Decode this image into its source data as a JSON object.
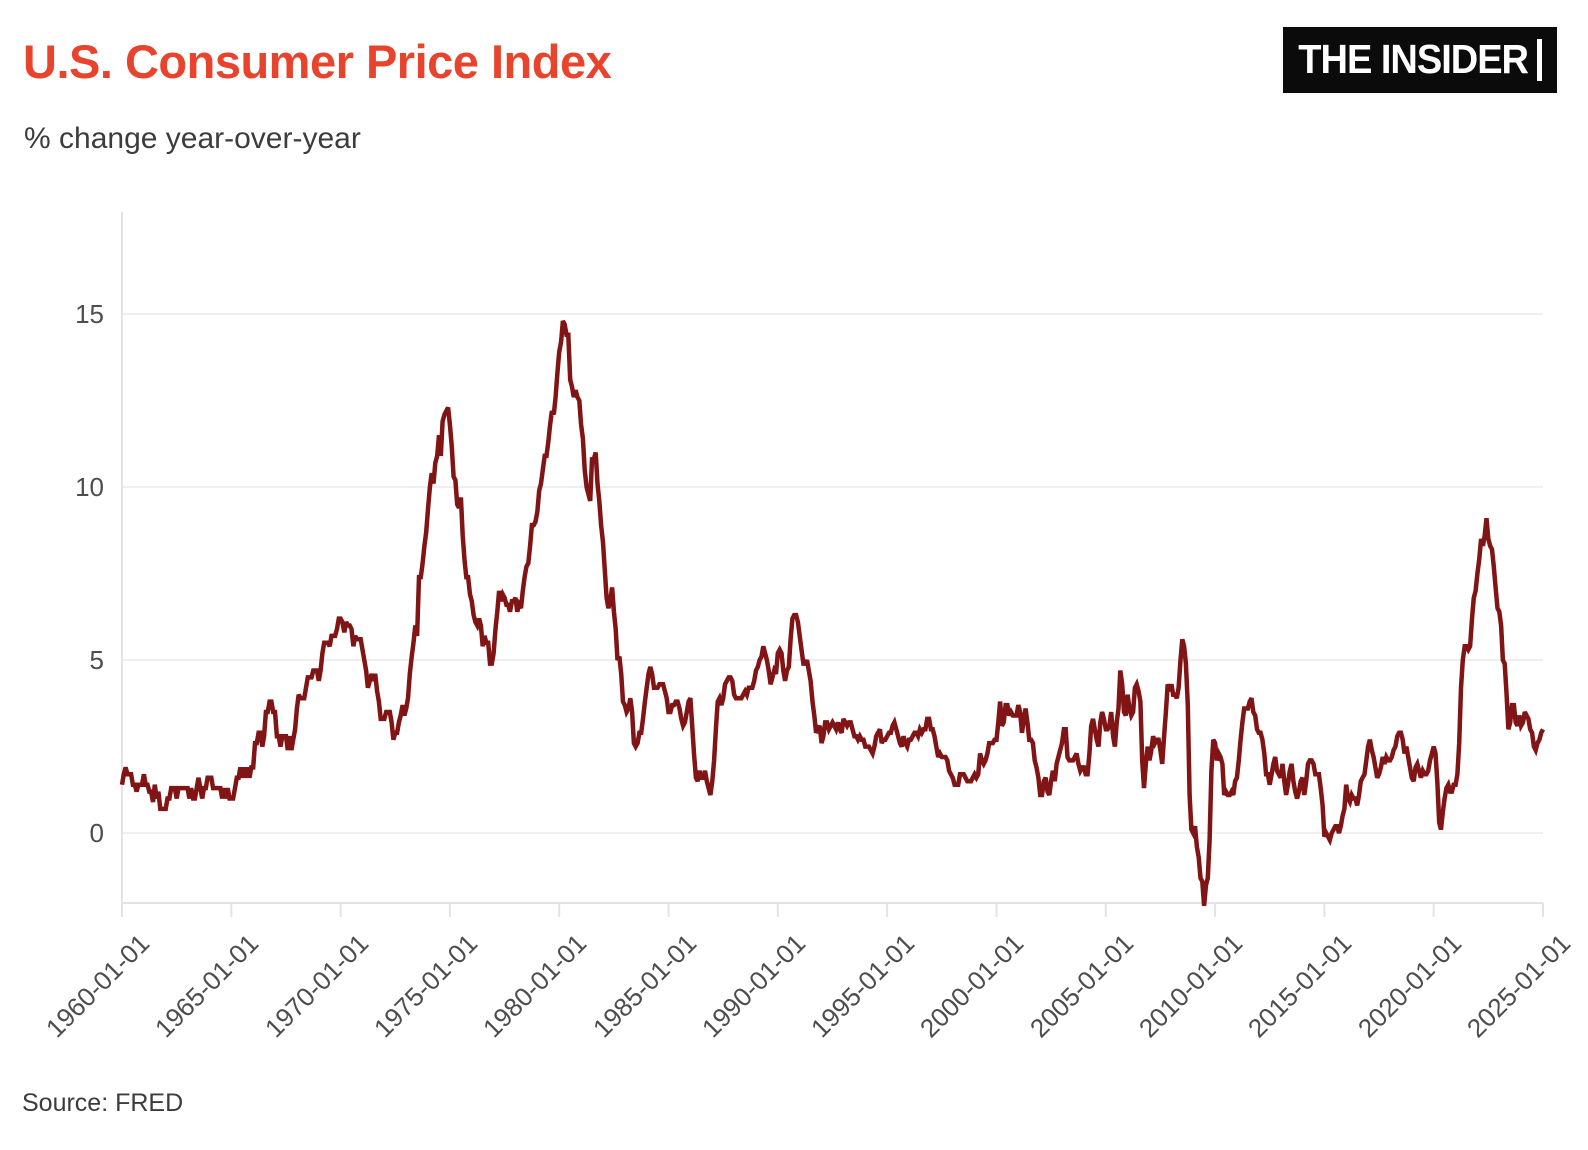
{
  "header": {
    "title": "U.S. Consumer Price Index",
    "subtitle": "% change year-over-year",
    "logo_text": "THE INSIDER"
  },
  "footer": {
    "source": "Source: FRED"
  },
  "chart": {
    "colors": {
      "title": "#e8432d",
      "line": "#811414",
      "grid": "#ececec",
      "axis": "#e3e3e3",
      "tick_label": "#4d4d4d"
    }
  },
  "chart_data": {
    "type": "line",
    "title": "U.S. Consumer Price Index",
    "subtitle": "% change year-over-year",
    "series_name": "CPI, % change year-over-year",
    "source": "FRED",
    "frequency": "monthly",
    "x_start": "1960-01-01",
    "x_end": "2025-01-01",
    "x_tick_labels": [
      "1960-01-01",
      "1965-01-01",
      "1970-01-01",
      "1975-01-01",
      "1980-01-01",
      "1985-01-01",
      "1990-01-01",
      "1995-01-01",
      "2000-01-01",
      "2005-01-01",
      "2010-01-01",
      "2015-01-01",
      "2020-01-01",
      "2025-01-01"
    ],
    "y_ticks": [
      0,
      5,
      10,
      15
    ],
    "ylim": [
      -2.02,
      17.95
    ],
    "grid": "horizontal",
    "legend": "none",
    "values": [
      1.4,
      1.7,
      1.9,
      1.7,
      1.7,
      1.7,
      1.4,
      1.4,
      1.2,
      1.4,
      1.4,
      1.4,
      1.7,
      1.4,
      1.4,
      1.2,
      1.2,
      0.9,
      1.4,
      1.0,
      1.2,
      0.7,
      0.7,
      0.7,
      0.7,
      1.0,
      1.0,
      1.3,
      1.3,
      1.3,
      1.0,
      1.3,
      1.3,
      1.3,
      1.3,
      1.3,
      1.3,
      1.0,
      1.3,
      1.0,
      1.0,
      1.3,
      1.6,
      1.3,
      1.0,
      1.3,
      1.3,
      1.6,
      1.6,
      1.6,
      1.3,
      1.3,
      1.3,
      1.3,
      1.3,
      1.0,
      1.3,
      1.0,
      1.3,
      1.0,
      1.0,
      1.0,
      1.3,
      1.6,
      1.6,
      1.9,
      1.6,
      1.9,
      1.6,
      1.9,
      1.6,
      1.9,
      1.9,
      2.6,
      2.6,
      2.9,
      2.9,
      2.5,
      2.8,
      3.5,
      3.5,
      3.8,
      3.8,
      3.5,
      3.5,
      2.8,
      2.8,
      2.5,
      2.8,
      2.8,
      2.8,
      2.4,
      2.8,
      2.4,
      2.7,
      3.0,
      3.6,
      4.0,
      3.9,
      3.9,
      3.9,
      4.2,
      4.5,
      4.5,
      4.5,
      4.7,
      4.7,
      4.7,
      4.4,
      4.7,
      5.2,
      5.5,
      5.5,
      5.5,
      5.4,
      5.7,
      5.7,
      5.7,
      5.9,
      6.2,
      6.2,
      6.1,
      5.8,
      6.1,
      6.0,
      6.0,
      5.9,
      5.4,
      5.7,
      5.6,
      5.6,
      5.6,
      5.3,
      5.0,
      4.7,
      4.2,
      4.4,
      4.6,
      4.4,
      4.6,
      4.1,
      3.8,
      3.3,
      3.3,
      3.3,
      3.5,
      3.5,
      3.5,
      3.2,
      2.7,
      2.9,
      2.9,
      3.2,
      3.4,
      3.7,
      3.4,
      3.6,
      3.9,
      4.6,
      5.1,
      5.5,
      6.0,
      5.7,
      7.4,
      7.4,
      7.8,
      8.3,
      8.7,
      9.4,
      10.0,
      10.4,
      10.1,
      10.7,
      10.9,
      11.5,
      10.9,
      11.9,
      12.1,
      12.2,
      12.3,
      11.8,
      11.2,
      10.3,
      10.2,
      9.5,
      9.4,
      9.7,
      8.6,
      7.9,
      7.4,
      7.4,
      6.9,
      6.7,
      6.3,
      6.1,
      6.0,
      6.2,
      6.0,
      5.4,
      5.7,
      5.5,
      5.5,
      4.9,
      4.9,
      5.2,
      5.9,
      6.4,
      7.0,
      6.7,
      6.9,
      6.8,
      6.6,
      6.6,
      6.4,
      6.7,
      6.7,
      6.8,
      6.4,
      6.6,
      6.5,
      7.0,
      7.4,
      7.7,
      7.8,
      8.3,
      8.9,
      8.9,
      9.0,
      9.3,
      9.9,
      10.1,
      10.5,
      10.9,
      10.9,
      11.3,
      11.8,
      12.2,
      12.1,
      12.6,
      13.3,
      13.9,
      14.2,
      14.8,
      14.7,
      14.4,
      14.4,
      13.1,
      12.9,
      12.6,
      12.8,
      12.6,
      12.5,
      11.8,
      11.4,
      10.5,
      10.0,
      9.8,
      9.6,
      10.8,
      10.8,
      11.0,
      10.1,
      9.6,
      8.9,
      8.4,
      7.6,
      6.8,
      6.5,
      6.7,
      7.1,
      6.4,
      5.9,
      5.0,
      5.1,
      4.6,
      3.8,
      3.7,
      3.5,
      3.6,
      3.9,
      3.5,
      2.6,
      2.5,
      2.6,
      2.9,
      2.9,
      3.3,
      3.8,
      4.2,
      4.6,
      4.8,
      4.6,
      4.2,
      4.2,
      4.2,
      4.3,
      4.3,
      4.3,
      4.1,
      3.9,
      3.5,
      3.5,
      3.7,
      3.7,
      3.8,
      3.8,
      3.6,
      3.3,
      3.1,
      3.2,
      3.5,
      3.8,
      3.9,
      3.1,
      2.3,
      1.6,
      1.5,
      1.8,
      1.6,
      1.6,
      1.8,
      1.5,
      1.3,
      1.1,
      1.5,
      2.1,
      3.0,
      3.8,
      3.9,
      3.7,
      3.9,
      4.3,
      4.4,
      4.5,
      4.5,
      4.4,
      4.0,
      3.9,
      3.9,
      3.9,
      3.9,
      4.0,
      4.1,
      4.0,
      4.2,
      4.2,
      4.2,
      4.4,
      4.7,
      4.8,
      5.0,
      5.1,
      5.4,
      5.2,
      5.0,
      4.7,
      4.3,
      4.5,
      4.7,
      4.6,
      5.2,
      5.3,
      5.2,
      4.7,
      4.4,
      4.7,
      4.8,
      5.6,
      6.2,
      6.3,
      6.3,
      6.1,
      5.7,
      5.3,
      4.9,
      4.9,
      5.0,
      4.7,
      4.4,
      3.8,
      3.4,
      2.9,
      3.0,
      3.1,
      2.6,
      2.8,
      3.2,
      3.2,
      3.0,
      3.1,
      3.2,
      3.1,
      3.0,
      3.2,
      3.0,
      2.9,
      3.3,
      3.2,
      3.1,
      3.2,
      3.2,
      3.0,
      2.8,
      2.8,
      2.7,
      2.8,
      2.7,
      2.7,
      2.5,
      2.5,
      2.5,
      2.4,
      2.3,
      2.5,
      2.8,
      2.9,
      3.0,
      2.6,
      2.7,
      2.7,
      2.8,
      2.9,
      2.9,
      3.1,
      3.2,
      3.0,
      2.8,
      2.6,
      2.5,
      2.8,
      2.6,
      2.5,
      2.7,
      2.7,
      2.8,
      2.9,
      2.9,
      2.8,
      3.0,
      2.9,
      3.0,
      3.0,
      3.3,
      3.3,
      3.0,
      3.0,
      2.8,
      2.5,
      2.2,
      2.3,
      2.2,
      2.2,
      2.2,
      2.1,
      1.8,
      1.7,
      1.6,
      1.4,
      1.4,
      1.4,
      1.7,
      1.7,
      1.7,
      1.6,
      1.5,
      1.5,
      1.5,
      1.6,
      1.7,
      1.6,
      1.7,
      2.3,
      2.1,
      2.0,
      2.1,
      2.3,
      2.6,
      2.6,
      2.6,
      2.7,
      2.7,
      3.2,
      3.8,
      3.1,
      3.2,
      3.7,
      3.7,
      3.4,
      3.5,
      3.4,
      3.4,
      3.4,
      3.7,
      3.5,
      2.9,
      3.3,
      3.6,
      3.2,
      2.7,
      2.7,
      2.6,
      2.1,
      1.9,
      1.6,
      1.1,
      1.1,
      1.5,
      1.6,
      1.2,
      1.1,
      1.5,
      1.8,
      1.5,
      2.0,
      2.2,
      2.4,
      2.6,
      3.0,
      3.0,
      2.2,
      2.1,
      2.1,
      2.1,
      2.2,
      2.3,
      2.0,
      1.8,
      1.9,
      1.9,
      1.7,
      1.7,
      2.3,
      3.1,
      3.3,
      3.0,
      2.7,
      2.5,
      3.2,
      3.5,
      3.3,
      3.0,
      3.0,
      3.1,
      3.5,
      2.8,
      2.5,
      3.2,
      3.6,
      4.7,
      4.3,
      3.5,
      3.4,
      4.0,
      3.6,
      3.4,
      3.5,
      4.2,
      4.3,
      4.1,
      3.8,
      2.1,
      1.3,
      2.0,
      2.5,
      2.1,
      2.4,
      2.8,
      2.6,
      2.7,
      2.7,
      2.4,
      2.0,
      2.8,
      3.5,
      4.3,
      4.1,
      4.3,
      4.0,
      4.0,
      3.9,
      4.2,
      5.0,
      5.6,
      5.4,
      4.9,
      3.7,
      1.1,
      0.1,
      0.0,
      0.2,
      -0.4,
      -0.7,
      -1.3,
      -1.4,
      -2.1,
      -1.5,
      -1.3,
      -0.2,
      1.8,
      2.7,
      2.6,
      2.1,
      2.3,
      2.2,
      2.0,
      1.1,
      1.2,
      1.1,
      1.1,
      1.2,
      1.1,
      1.5,
      1.6,
      2.1,
      2.7,
      3.2,
      3.6,
      3.6,
      3.6,
      3.8,
      3.9,
      3.5,
      3.4,
      3.0,
      2.9,
      2.9,
      2.7,
      2.3,
      1.7,
      1.7,
      1.4,
      1.7,
      2.0,
      2.2,
      1.8,
      1.7,
      1.6,
      2.0,
      1.5,
      1.1,
      1.4,
      1.8,
      2.0,
      1.5,
      1.2,
      1.0,
      1.2,
      1.5,
      1.6,
      1.1,
      1.5,
      2.0,
      2.1,
      2.1,
      2.0,
      1.7,
      1.7,
      1.7,
      1.3,
      0.8,
      -0.1,
      0.0,
      -0.1,
      -0.2,
      0.0,
      0.1,
      0.2,
      0.2,
      0.0,
      0.2,
      0.5,
      0.7,
      1.4,
      1.0,
      0.9,
      1.1,
      1.0,
      1.0,
      0.8,
      1.1,
      1.5,
      1.6,
      1.7,
      2.1,
      2.5,
      2.7,
      2.4,
      2.2,
      1.9,
      1.6,
      1.7,
      1.9,
      2.2,
      2.0,
      2.2,
      2.1,
      2.1,
      2.2,
      2.4,
      2.5,
      2.8,
      2.9,
      2.9,
      2.7,
      2.3,
      2.5,
      2.2,
      1.9,
      1.6,
      1.5,
      1.9,
      2.0,
      1.8,
      1.6,
      1.8,
      1.7,
      1.7,
      1.8,
      2.1,
      2.3,
      2.5,
      2.3,
      1.5,
      0.3,
      0.1,
      0.6,
      1.0,
      1.3,
      1.4,
      1.2,
      1.2,
      1.4,
      1.4,
      1.7,
      2.6,
      4.2,
      5.0,
      5.4,
      5.4,
      5.3,
      5.4,
      6.2,
      6.8,
      7.0,
      7.5,
      7.9,
      8.5,
      8.3,
      8.6,
      9.1,
      8.5,
      8.3,
      8.2,
      7.7,
      7.1,
      6.5,
      6.4,
      6.0,
      5.0,
      4.9,
      4.0,
      3.0,
      3.2,
      3.7,
      3.7,
      3.2,
      3.1,
      3.4,
      3.1,
      3.2,
      3.5,
      3.4,
      3.3,
      3.0,
      2.9,
      2.5,
      2.4,
      2.6,
      2.7,
      2.9,
      3.0
    ]
  }
}
